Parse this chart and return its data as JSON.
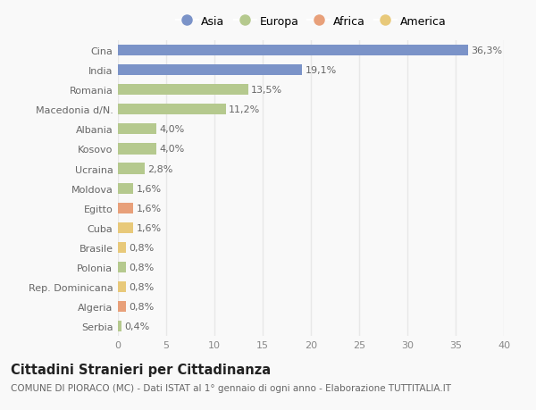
{
  "countries": [
    "Cina",
    "India",
    "Romania",
    "Macedonia d/N.",
    "Albania",
    "Kosovo",
    "Ucraina",
    "Moldova",
    "Egitto",
    "Cuba",
    "Brasile",
    "Polonia",
    "Rep. Dominicana",
    "Algeria",
    "Serbia"
  ],
  "values": [
    36.3,
    19.1,
    13.5,
    11.2,
    4.0,
    4.0,
    2.8,
    1.6,
    1.6,
    1.6,
    0.8,
    0.8,
    0.8,
    0.8,
    0.4
  ],
  "labels": [
    "36,3%",
    "19,1%",
    "13,5%",
    "11,2%",
    "4,0%",
    "4,0%",
    "2,8%",
    "1,6%",
    "1,6%",
    "1,6%",
    "0,8%",
    "0,8%",
    "0,8%",
    "0,8%",
    "0,4%"
  ],
  "continents": [
    "Asia",
    "Asia",
    "Europa",
    "Europa",
    "Europa",
    "Europa",
    "Europa",
    "Europa",
    "Africa",
    "America",
    "America",
    "Europa",
    "America",
    "Africa",
    "Europa"
  ],
  "colors": {
    "Asia": "#7b93c8",
    "Europa": "#b5c98e",
    "Africa": "#e8a07a",
    "America": "#e8c97a"
  },
  "legend_order": [
    "Asia",
    "Europa",
    "Africa",
    "America"
  ],
  "title": "Cittadini Stranieri per Cittadinanza",
  "subtitle": "COMUNE DI PIORACO (MC) - Dati ISTAT al 1° gennaio di ogni anno - Elaborazione TUTTITALIA.IT",
  "xlim": [
    0,
    40
  ],
  "xticks": [
    0,
    5,
    10,
    15,
    20,
    25,
    30,
    35,
    40
  ],
  "background_color": "#f9f9f9",
  "grid_color": "#e8e8e8",
  "bar_height": 0.55,
  "label_fontsize": 8,
  "tick_fontsize": 8,
  "title_fontsize": 10.5,
  "subtitle_fontsize": 7.5,
  "legend_fontsize": 9
}
